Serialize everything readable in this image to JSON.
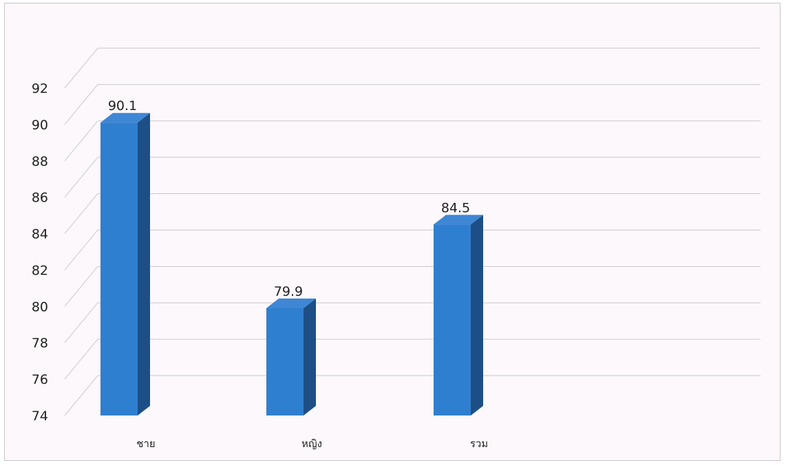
{
  "chart_data": {
    "type": "bar",
    "style": "3d-column",
    "categories": [
      "ชาย",
      "หญิง",
      "รวม"
    ],
    "values": [
      90.1,
      79.9,
      84.5
    ],
    "data_labels": [
      "90.1",
      "79.9",
      "84.5"
    ],
    "y_ticks": [
      "74",
      "76",
      "78",
      "80",
      "82",
      "84",
      "86",
      "88",
      "90",
      "92"
    ],
    "title": "",
    "xlabel": "",
    "ylabel": "",
    "ylim": [
      74,
      92
    ],
    "grid": true,
    "legend": "none",
    "colors": {
      "bar_front": "#2f7fd0",
      "bar_side": "#1d4f86",
      "bar_top": "#3f86d4",
      "grid": "#c9c9c9",
      "background": "#fcf8fb"
    }
  }
}
